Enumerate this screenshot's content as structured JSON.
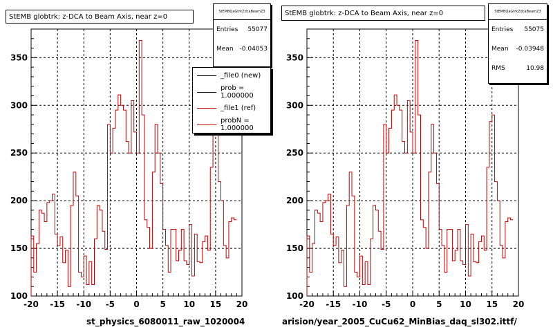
{
  "colors": {
    "ref": "#c00000",
    "new": "#000000",
    "grid": "#000000"
  },
  "panels": [
    {
      "title": "StEMB globtrk: z-DCA to Beam Axis, near z=0",
      "stats_header": "StEMBQaGtrkZdcaBeamZ3",
      "stats": [
        {
          "label": "Entries",
          "value": "55077"
        },
        {
          "label": "Mean",
          "value": "-0.04053"
        }
      ],
      "legend": [
        {
          "label": "_file0 (new)",
          "color": "#000000"
        },
        {
          "label": "prob = 1.000000",
          "color": "#000000"
        },
        {
          "label": "_file1 (ref)",
          "color": "#c00000"
        },
        {
          "label": "probN = 1.000000",
          "color": "#c00000"
        }
      ],
      "xtitle": "st_physics_6080011_raw_1020004"
    },
    {
      "title": "StEMB globtrk: z-DCA to Beam Axis, near z=0",
      "stats_header": "StEMBQaGtrkZdcaBeamZ3",
      "stats": [
        {
          "label": "Entries",
          "value": "55075"
        },
        {
          "label": "Mean",
          "value": "-0.03948"
        },
        {
          "label": "RMS",
          "value": "10.98"
        }
      ],
      "xtitle": "arision/year_2005_CuCu62_MinBias_daq_sl302.ittf/"
    }
  ],
  "chart_data": {
    "type": "line",
    "xlim": [
      -20,
      20
    ],
    "ylim": [
      100,
      380
    ],
    "x_ticks": [
      -20,
      -15,
      -10,
      -5,
      0,
      5,
      10,
      15,
      20
    ],
    "y_ticks": [
      100,
      150,
      200,
      250,
      300,
      350
    ],
    "grid": true,
    "bin_width": 0.5,
    "bin_start": -20,
    "series": [
      {
        "name": "_file1 (ref)",
        "values": [
          163,
          125,
          155,
          190,
          187,
          178,
          198,
          200,
          207,
          165,
          153,
          162,
          135,
          148,
          110,
          195,
          230,
          205,
          125,
          120,
          142,
          112,
          136,
          112,
          160,
          195,
          190,
          168,
          149,
          280,
          250,
          276,
          295,
          311,
          300,
          295,
          262,
          250,
          305,
          272,
          250,
          368,
          290,
          180,
          172,
          150,
          230,
          280,
          250,
          218,
          170,
          153,
          125,
          170,
          170,
          137,
          148,
          170,
          137,
          133,
          175,
          121,
          165,
          136,
          135,
          157,
          163,
          148,
          235,
          283,
          290,
          220,
          200,
          153,
          140,
          178,
          182,
          180
        ]
      }
    ]
  }
}
